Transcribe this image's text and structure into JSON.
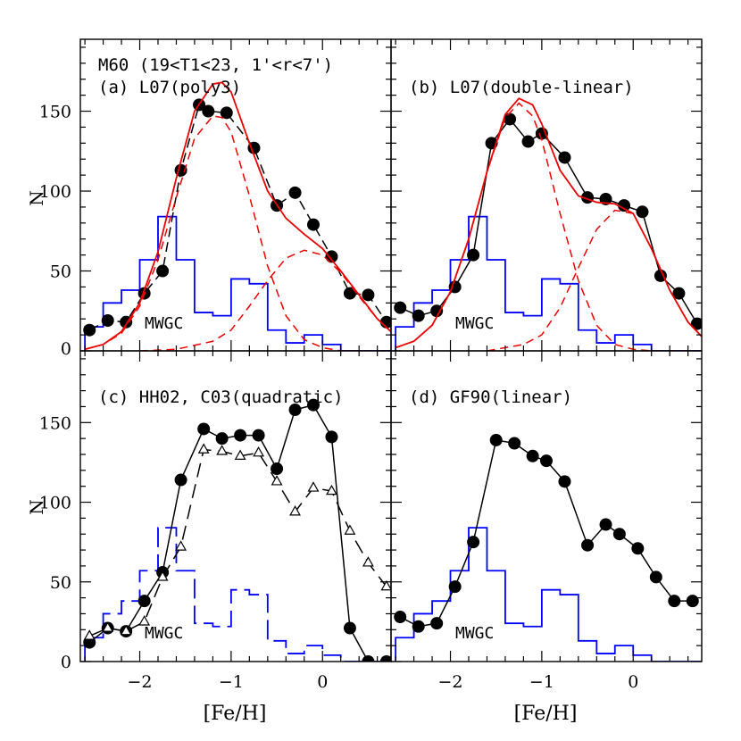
{
  "colors": {
    "blue": "#0000ff",
    "red": "#ee0000",
    "black": "#000000"
  },
  "common": {
    "xlabel": "[Fe/H]",
    "ylabel": "N",
    "xlim": [
      -2.65,
      0.75
    ],
    "ylim": [
      0,
      195
    ],
    "xticks": [
      -2,
      -1,
      0
    ],
    "yticks": [
      0,
      50,
      100,
      150
    ],
    "mwgc_label": "MWGC",
    "mwgc_hist": {
      "edges": [
        -2.6,
        -2.4,
        -2.2,
        -2.0,
        -1.8,
        -1.6,
        -1.4,
        -1.2,
        -1.0,
        -0.8,
        -0.6,
        -0.4,
        -0.2,
        0.0,
        0.2,
        0.4,
        0.6
      ],
      "counts": [
        15,
        30,
        38,
        57,
        84,
        57,
        24,
        22,
        45,
        42,
        13,
        5,
        10,
        4,
        0,
        0
      ]
    }
  },
  "chart_data": [
    {
      "type": "line",
      "panel": "a",
      "title": "M60 (19<T1<23, 1'<r<7')",
      "subtitle": "(a) L07(poly3)",
      "series": [
        {
          "style": "points-dashed",
          "x": [
            -2.55,
            -2.35,
            -2.15,
            -1.95,
            -1.75,
            -1.55,
            -1.35,
            -1.25,
            -1.05,
            -0.75,
            -0.5,
            -0.3,
            -0.1,
            0.1,
            0.3,
            0.5,
            0.7
          ],
          "y": [
            13,
            19,
            18,
            36,
            50,
            113,
            154,
            150,
            149,
            127,
            91,
            99,
            79,
            59,
            36,
            35,
            18
          ]
        },
        {
          "style": "red-solid",
          "x": [
            -2.6,
            -2.4,
            -2.2,
            -2.0,
            -1.8,
            -1.6,
            -1.4,
            -1.2,
            -1.1,
            -1.0,
            -0.8,
            -0.6,
            -0.4,
            -0.2,
            0.0,
            0.2,
            0.4,
            0.6,
            0.75
          ],
          "y": [
            1,
            4,
            12,
            30,
            62,
            108,
            150,
            167,
            168,
            162,
            130,
            100,
            83,
            73,
            64,
            50,
            35,
            20,
            12
          ]
        },
        {
          "style": "red-dashed",
          "x": [
            -2.6,
            -2.4,
            -2.2,
            -2.0,
            -1.8,
            -1.6,
            -1.4,
            -1.2,
            -1.1,
            -1.0,
            -0.8,
            -0.6,
            -0.4,
            -0.2,
            0.0,
            0.2,
            0.4,
            0.6,
            0.75
          ],
          "y": [
            1,
            4,
            11,
            28,
            57,
            96,
            133,
            147,
            146,
            137,
            97,
            53,
            22,
            7,
            2,
            0,
            0,
            0,
            0
          ]
        },
        {
          "style": "red-dashed",
          "x": [
            -2.0,
            -1.6,
            -1.2,
            -1.0,
            -0.8,
            -0.6,
            -0.4,
            -0.2,
            0.0,
            0.2,
            0.4,
            0.6,
            0.75
          ],
          "y": [
            0,
            1,
            6,
            13,
            28,
            44,
            58,
            63,
            60,
            49,
            34,
            20,
            12
          ]
        }
      ]
    },
    {
      "type": "line",
      "panel": "b",
      "subtitle": "(b) L07(double-linear)",
      "series": [
        {
          "style": "points-solid",
          "x": [
            -2.55,
            -2.35,
            -2.15,
            -1.95,
            -1.75,
            -1.55,
            -1.35,
            -1.15,
            -1.0,
            -0.75,
            -0.5,
            -0.3,
            -0.1,
            0.1,
            0.3,
            0.5,
            0.7
          ],
          "y": [
            27,
            22,
            25,
            40,
            60,
            130,
            145,
            131,
            136,
            121,
            96,
            95,
            91,
            87,
            47,
            36,
            17
          ]
        },
        {
          "style": "red-solid",
          "x": [
            -2.6,
            -2.4,
            -2.2,
            -2.0,
            -1.8,
            -1.6,
            -1.4,
            -1.25,
            -1.1,
            -1.0,
            -0.8,
            -0.6,
            -0.4,
            -0.2,
            0.0,
            0.2,
            0.4,
            0.6,
            0.75
          ],
          "y": [
            2,
            6,
            16,
            37,
            70,
            112,
            148,
            158,
            154,
            142,
            113,
            97,
            93,
            92,
            86,
            64,
            38,
            18,
            9
          ]
        },
        {
          "style": "red-dashed",
          "x": [
            -2.6,
            -2.4,
            -2.2,
            -2.0,
            -1.8,
            -1.6,
            -1.4,
            -1.25,
            -1.1,
            -1.0,
            -0.8,
            -0.6,
            -0.4,
            -0.2,
            0.0,
            0.2,
            0.4,
            0.6
          ],
          "y": [
            2,
            6,
            16,
            37,
            70,
            112,
            146,
            155,
            147,
            132,
            86,
            44,
            16,
            4,
            1,
            0,
            0,
            0
          ]
        },
        {
          "style": "red-dashed",
          "x": [
            -1.6,
            -1.2,
            -1.0,
            -0.8,
            -0.6,
            -0.4,
            -0.2,
            0.0,
            0.2,
            0.4,
            0.6,
            0.75
          ],
          "y": [
            0,
            4,
            10,
            27,
            52,
            76,
            88,
            86,
            64,
            38,
            18,
            9
          ]
        }
      ]
    },
    {
      "type": "line",
      "panel": "c",
      "subtitle": "(c) HH02, C03(quadratic)",
      "series": [
        {
          "style": "points-solid",
          "x": [
            -2.55,
            -2.35,
            -2.15,
            -1.95,
            -1.75,
            -1.55,
            -1.3,
            -1.1,
            -0.9,
            -0.7,
            -0.5,
            -0.3,
            -0.1,
            0.1,
            0.3,
            0.5,
            0.7
          ],
          "y": [
            12,
            21,
            19,
            38,
            56,
            114,
            146,
            140,
            142,
            142,
            121,
            158,
            161,
            141,
            21,
            0,
            0
          ]
        },
        {
          "style": "triangles-dashed",
          "x": [
            -2.55,
            -2.35,
            -2.15,
            -1.95,
            -1.75,
            -1.55,
            -1.3,
            -1.1,
            -0.9,
            -0.7,
            -0.5,
            -0.3,
            -0.1,
            0.1,
            0.3,
            0.5,
            0.7
          ],
          "y": [
            16,
            21,
            19,
            25,
            53,
            72,
            133,
            132,
            129,
            131,
            113,
            94,
            109,
            107,
            82,
            62,
            47
          ]
        }
      ]
    },
    {
      "type": "line",
      "panel": "d",
      "subtitle": "(d) GF90(linear)",
      "series": [
        {
          "style": "points-solid",
          "x": [
            -2.55,
            -2.35,
            -2.15,
            -1.95,
            -1.75,
            -1.5,
            -1.3,
            -1.1,
            -0.95,
            -0.75,
            -0.5,
            -0.3,
            -0.15,
            0.05,
            0.25,
            0.45,
            0.65
          ],
          "y": [
            28,
            22,
            24,
            47,
            75,
            139,
            137,
            129,
            126,
            113,
            73,
            86,
            80,
            71,
            53,
            38,
            38
          ]
        }
      ]
    }
  ]
}
